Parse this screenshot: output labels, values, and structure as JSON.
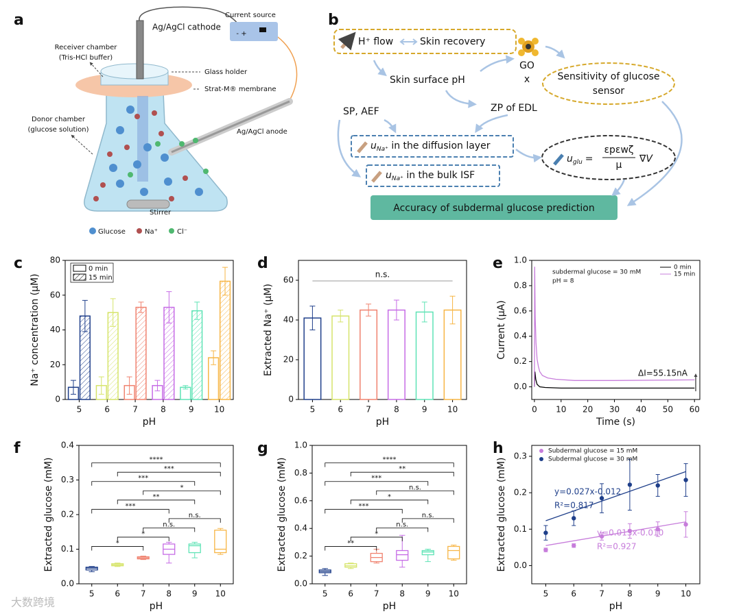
{
  "panel_labels": [
    "a",
    "b",
    "c",
    "d",
    "e",
    "f",
    "g",
    "h"
  ],
  "diagram_a": {
    "cathode": "Ag/AgCl cathode",
    "source": "Current source",
    "source_signs": "- +",
    "receiver": [
      "Receiver chamber",
      "(Tris-HCl buffer)"
    ],
    "holder": "Glass holder",
    "membrane": "Strat-M® membrane",
    "donor": [
      "Donor chamber",
      "(glucose solution)"
    ],
    "anode": "Ag/AgCl anode",
    "stirrer": "Stirrer",
    "legend": [
      "Glucose",
      "Na⁺",
      "Cl⁻"
    ]
  },
  "diagram_b": {
    "h_flow": "H⁺ flow",
    "skin_recovery": "Skin recovery",
    "skin_ph": "Skin surface pH",
    "go": "GO",
    "times": "x",
    "sensitivity": [
      "Sensitivity of glucose",
      "sensor"
    ],
    "sp_aef": "SP, AEF",
    "zp": "ZP of EDL",
    "u": "u",
    "na": "Na⁺",
    "diffusion": " in the diffusion layer",
    "bulk": " in the bulk ISF",
    "glu": "glu",
    "equals": "=",
    "numerator": "εpεwζ",
    "denominator": "μ",
    "grad": "∇V",
    "accuracy": "Accuracy of subdermal glucose prediction"
  },
  "watermark": "大数跨境",
  "chart_data": [
    {
      "type": "bar",
      "categories": [
        "5",
        "6",
        "7",
        "8",
        "9",
        "10"
      ],
      "colors": [
        "#1f3f8a",
        "#d6e46a",
        "#f0826f",
        "#c66be6",
        "#5ee3b5",
        "#f7b544"
      ],
      "series": [
        {
          "name": "0 min",
          "values": [
            7,
            8,
            8,
            8,
            7,
            24
          ],
          "errors": [
            4,
            5,
            5,
            3,
            1,
            4
          ]
        },
        {
          "name": "15 min",
          "hatch": true,
          "values": [
            48,
            50,
            53,
            53,
            51,
            68
          ],
          "errors": [
            9,
            8,
            3,
            9,
            5,
            8
          ]
        }
      ],
      "xlabel": "pH",
      "ylabel": "Na⁺ concentration (μM)",
      "ylim": [
        0,
        80
      ],
      "yticks": [
        0,
        20,
        40,
        60,
        80
      ],
      "legend": "upper left"
    },
    {
      "type": "bar",
      "categories": [
        "5",
        "6",
        "7",
        "8",
        "9",
        "10"
      ],
      "colors": [
        "#1f3f8a",
        "#d6e46a",
        "#f0826f",
        "#c66be6",
        "#5ee3b5",
        "#f7b544"
      ],
      "series": [
        {
          "values": [
            41,
            42,
            45,
            45,
            44,
            45
          ],
          "errors": [
            6,
            3,
            3,
            5,
            5,
            7
          ]
        }
      ],
      "xlabel": "pH",
      "ylabel": "Extracted Na⁺ (μM)",
      "ylim": [
        0,
        70
      ],
      "yticks": [
        0,
        20,
        40,
        60
      ],
      "annotations": [
        "n.s."
      ]
    },
    {
      "type": "line",
      "xlabel": "Time (s)",
      "ylabel": "Current (μA)",
      "xlim": [
        -1,
        62
      ],
      "xticks": [
        0,
        10,
        20,
        30,
        40,
        50,
        60
      ],
      "ylim": [
        -0.1,
        1.0
      ],
      "yticks": [
        {
          "value": 0,
          "label": "0.0"
        },
        0.2,
        0.4,
        0.6,
        0.8,
        {
          "value": 1,
          "label": "1.0"
        }
      ],
      "series": [
        {
          "name": "0 min",
          "color": "#000000",
          "x": [
            0,
            0.2,
            0.5,
            1,
            2,
            4,
            10,
            30,
            60
          ],
          "values": [
            0,
            0.12,
            0.06,
            0.02,
            0,
            -0.005,
            -0.01,
            -0.01,
            -0.01
          ]
        },
        {
          "name": "15 min",
          "color": "#c77ddb",
          "x": [
            0,
            0.1,
            0.3,
            0.6,
            1,
            1.5,
            2,
            3,
            5,
            8,
            15,
            30,
            60
          ],
          "values": [
            0,
            0.95,
            0.55,
            0.35,
            0.22,
            0.16,
            0.12,
            0.09,
            0.07,
            0.06,
            0.05,
            0.05,
            0.055
          ]
        }
      ],
      "legend": "upper right",
      "annotations": [
        "subdermal glucose = 30 mM",
        "pH = 8",
        "ΔI=55.15nA"
      ]
    },
    {
      "type": "box",
      "categories": [
        "5",
        "6",
        "7",
        "8",
        "9",
        "10"
      ],
      "colors": [
        "#1f3f8a",
        "#d6e46a",
        "#f0826f",
        "#c66be6",
        "#5ee3b5",
        "#f7b544"
      ],
      "boxes": [
        {
          "min": 0.035,
          "q1": 0.04,
          "median": 0.045,
          "q3": 0.048,
          "max": 0.05
        },
        {
          "min": 0.05,
          "q1": 0.052,
          "median": 0.055,
          "q3": 0.058,
          "max": 0.06
        },
        {
          "min": 0.07,
          "q1": 0.072,
          "median": 0.075,
          "q3": 0.078,
          "max": 0.08
        },
        {
          "min": 0.06,
          "q1": 0.085,
          "median": 0.1,
          "q3": 0.115,
          "max": 0.12
        },
        {
          "min": 0.075,
          "q1": 0.09,
          "median": 0.11,
          "q3": 0.115,
          "max": 0.12
        },
        {
          "min": 0.085,
          "q1": 0.09,
          "median": 0.1,
          "q3": 0.155,
          "max": 0.16
        }
      ],
      "comparisons": [
        {
          "groups": [
            "5",
            "7"
          ],
          "label": "*"
        },
        {
          "groups": [
            "6",
            "8"
          ],
          "label": "*"
        },
        {
          "groups": [
            "7",
            "9"
          ],
          "label": "n.s."
        },
        {
          "groups": [
            "8",
            "10"
          ],
          "label": "n.s."
        },
        {
          "groups": [
            "5",
            "8"
          ],
          "label": "***"
        },
        {
          "groups": [
            "6",
            "9"
          ],
          "label": "**"
        },
        {
          "groups": [
            "7",
            "10"
          ],
          "label": "*"
        },
        {
          "groups": [
            "5",
            "9"
          ],
          "label": "***"
        },
        {
          "groups": [
            "6",
            "10"
          ],
          "label": "***"
        },
        {
          "groups": [
            "5",
            "10"
          ],
          "label": "****"
        }
      ],
      "xlabel": "pH",
      "ylabel": "Extracted glucose (mM)",
      "ylim": [
        0,
        0.4
      ],
      "yticks": [
        {
          "value": 0,
          "label": "0.0"
        },
        0.1,
        0.2,
        0.3,
        0.4
      ]
    },
    {
      "type": "box",
      "categories": [
        "5",
        "6",
        "7",
        "8",
        "9",
        "10"
      ],
      "colors": [
        "#1f3f8a",
        "#d6e46a",
        "#f0826f",
        "#c66be6",
        "#5ee3b5",
        "#f7b544"
      ],
      "boxes": [
        {
          "min": 0.06,
          "q1": 0.08,
          "median": 0.09,
          "q3": 0.1,
          "max": 0.11
        },
        {
          "min": 0.11,
          "q1": 0.12,
          "median": 0.13,
          "q3": 0.145,
          "max": 0.15
        },
        {
          "min": 0.15,
          "q1": 0.16,
          "median": 0.19,
          "q3": 0.22,
          "max": 0.25
        },
        {
          "min": 0.12,
          "q1": 0.17,
          "median": 0.21,
          "q3": 0.24,
          "max": 0.35
        },
        {
          "min": 0.16,
          "q1": 0.21,
          "median": 0.23,
          "q3": 0.24,
          "max": 0.25
        },
        {
          "min": 0.17,
          "q1": 0.18,
          "median": 0.24,
          "q3": 0.27,
          "max": 0.28
        }
      ],
      "comparisons": [
        {
          "groups": [
            "5",
            "7"
          ],
          "label": "**"
        },
        {
          "groups": [
            "6",
            "8"
          ],
          "label": "*"
        },
        {
          "groups": [
            "7",
            "9"
          ],
          "label": "n.s."
        },
        {
          "groups": [
            "8",
            "10"
          ],
          "label": "n.s."
        },
        {
          "groups": [
            "5",
            "8"
          ],
          "label": "***"
        },
        {
          "groups": [
            "6",
            "9"
          ],
          "label": "*"
        },
        {
          "groups": [
            "7",
            "10"
          ],
          "label": "n.s."
        },
        {
          "groups": [
            "5",
            "9"
          ],
          "label": "***"
        },
        {
          "groups": [
            "6",
            "10"
          ],
          "label": "**"
        },
        {
          "groups": [
            "5",
            "10"
          ],
          "label": "****"
        }
      ],
      "xlabel": "pH",
      "ylabel": "Extracted glucose (mM)",
      "ylim": [
        0,
        1.0
      ],
      "yticks": [
        {
          "value": 0,
          "label": "0.0"
        },
        0.2,
        0.4,
        0.6,
        0.8,
        {
          "value": 1,
          "label": "1.0"
        }
      ]
    },
    {
      "type": "scatter",
      "xlabel": "pH",
      "ylabel": "Extracted glucose (mM)",
      "xlim": [
        4.5,
        10.5
      ],
      "xticks": [
        5,
        6,
        7,
        8,
        9,
        10
      ],
      "ylim": [
        -0.05,
        0.33
      ],
      "yticks": [
        {
          "value": 0,
          "label": "0.0"
        },
        0.1,
        0.2,
        0.3
      ],
      "series": [
        {
          "name": "Subdermal glucose = 15 mM",
          "color": "#c77ddb",
          "x": [
            5,
            6,
            7,
            8,
            9,
            10
          ],
          "values": [
            0.043,
            0.055,
            0.08,
            0.095,
            0.1,
            0.113
          ],
          "errors": [
            0.005,
            0.005,
            0.01,
            0.02,
            0.02,
            0.035
          ],
          "fit": {
            "slope": 0.013,
            "intercept": -0.01,
            "label": "y=0.013x-0.010",
            "r2_label": "R²=0.927"
          }
        },
        {
          "name": "Subdermal glucose = 30 mM",
          "color": "#1f3f8a",
          "x": [
            5,
            6,
            7,
            8,
            9,
            10
          ],
          "values": [
            0.09,
            0.13,
            0.185,
            0.222,
            0.22,
            0.235
          ],
          "errors": [
            0.02,
            0.02,
            0.04,
            0.07,
            0.03,
            0.045
          ],
          "fit": {
            "slope": 0.027,
            "intercept": -0.012,
            "label": "y=0.027x-0.012",
            "r2_label": "R²=0.817"
          }
        }
      ],
      "legend": "upper left"
    }
  ]
}
